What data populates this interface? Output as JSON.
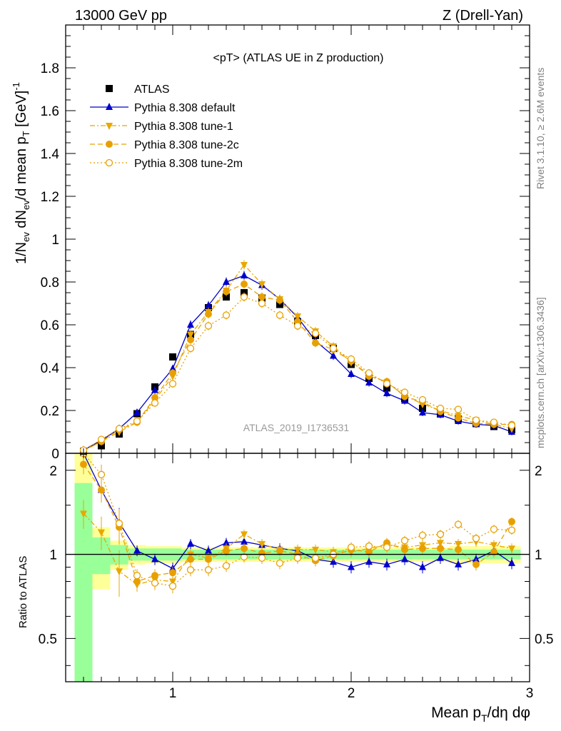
{
  "header": {
    "left": "13000 GeV pp",
    "right": "Z (Drell-Yan)"
  },
  "side_text": {
    "rivet": "Rivet 3.1.10, ≥ 2.6M events",
    "site": "mcplots.cern.ch [arXiv:1306.3436]"
  },
  "watermark": "ATLAS_2019_I1736531",
  "legend_title": "<pT> (ATLAS UE in Z production)",
  "chart_data": [
    {
      "type": "scatter",
      "panel": "main",
      "ylabel": "1/N_ev dN_ev/d mean p_T [GeV]^-1",
      "xlim": [
        0.4,
        3.0
      ],
      "ylim": [
        0,
        2.0
      ],
      "yticks": [
        0,
        0.2,
        0.4,
        0.6,
        0.8,
        1,
        1.2,
        1.4,
        1.6,
        1.8
      ],
      "ytick_labels": [
        "0",
        "0.2",
        "0.4",
        "0.6",
        "0.8",
        "1",
        "1.2",
        "1.4",
        "1.6",
        "1.8"
      ],
      "x": [
        0.5,
        0.6,
        0.7,
        0.8,
        0.9,
        1.0,
        1.1,
        1.2,
        1.3,
        1.4,
        1.5,
        1.6,
        1.7,
        1.8,
        1.9,
        2.0,
        2.1,
        2.2,
        2.3,
        2.4,
        2.5,
        2.6,
        2.7,
        2.8,
        2.9
      ],
      "series": [
        {
          "name": "ATLAS",
          "color": "#000000",
          "marker": "square",
          "values": [
            0.01,
            0.035,
            0.09,
            0.185,
            0.31,
            0.45,
            0.555,
            0.68,
            0.73,
            0.75,
            0.725,
            0.695,
            0.615,
            0.55,
            0.49,
            0.415,
            0.35,
            0.305,
            0.255,
            0.21,
            0.185,
            0.16,
            0.14,
            0.125,
            0.11
          ]
        },
        {
          "name": "Pythia 8.308 default",
          "color": "#0000cc",
          "marker": "triangle-up",
          "line": "solid",
          "values": [
            0.015,
            0.06,
            0.115,
            0.19,
            0.295,
            0.395,
            0.6,
            0.69,
            0.8,
            0.83,
            0.785,
            0.72,
            0.635,
            0.525,
            0.455,
            0.37,
            0.33,
            0.28,
            0.245,
            0.19,
            0.18,
            0.15,
            0.135,
            0.13,
            0.1
          ]
        },
        {
          "name": "Pythia 8.308 tune-1",
          "color": "#e8a800",
          "marker": "triangle-down",
          "line": "dashdot",
          "values": [
            0.012,
            0.055,
            0.1,
            0.145,
            0.25,
            0.36,
            0.555,
            0.66,
            0.76,
            0.88,
            0.79,
            0.72,
            0.64,
            0.57,
            0.5,
            0.425,
            0.37,
            0.33,
            0.27,
            0.23,
            0.2,
            0.175,
            0.155,
            0.135,
            0.115
          ]
        },
        {
          "name": "Pythia 8.308 tune-2c",
          "color": "#e8a000",
          "marker": "circle-filled",
          "line": "dashed",
          "values": [
            0.012,
            0.055,
            0.11,
            0.145,
            0.26,
            0.375,
            0.53,
            0.65,
            0.755,
            0.79,
            0.73,
            0.715,
            0.615,
            0.515,
            0.485,
            0.43,
            0.36,
            0.335,
            0.265,
            0.24,
            0.195,
            0.165,
            0.14,
            0.135,
            0.135
          ]
        },
        {
          "name": "Pythia 8.308 tune-2m",
          "color": "#e8a000",
          "marker": "circle-open",
          "line": "dotted",
          "values": [
            0.015,
            0.065,
            0.115,
            0.15,
            0.235,
            0.325,
            0.49,
            0.595,
            0.645,
            0.73,
            0.7,
            0.645,
            0.595,
            0.56,
            0.49,
            0.44,
            0.375,
            0.325,
            0.285,
            0.25,
            0.21,
            0.205,
            0.155,
            0.145,
            0.13
          ]
        }
      ]
    },
    {
      "type": "scatter",
      "panel": "ratio",
      "ylabel": "Ratio to ATLAS",
      "xlabel": "Mean p_T/dη dφ",
      "xlim": [
        0.4,
        3.0
      ],
      "ylim": [
        0.35,
        2.3
      ],
      "yticks": [
        0.5,
        1,
        2
      ],
      "ytick_labels": [
        "0.5",
        "1",
        "2"
      ],
      "xticks": [
        1,
        2,
        3
      ],
      "xtick_labels": [
        "1",
        "2",
        "3"
      ],
      "x": [
        0.5,
        0.6,
        0.7,
        0.8,
        0.9,
        1.0,
        1.1,
        1.2,
        1.3,
        1.4,
        1.5,
        1.6,
        1.7,
        1.8,
        1.9,
        2.0,
        2.1,
        2.2,
        2.3,
        2.4,
        2.5,
        2.6,
        2.7,
        2.8,
        2.9
      ],
      "band_green": [
        0.8,
        0.15,
        0.08,
        0.05,
        0.05,
        0.05,
        0.04,
        0.04,
        0.04,
        0.04,
        0.04,
        0.04,
        0.04,
        0.04,
        0.04,
        0.04,
        0.04,
        0.04,
        0.04,
        0.04,
        0.04,
        0.04,
        0.04,
        0.04,
        0.04
      ],
      "band_yellow": [
        1.5,
        0.25,
        0.12,
        0.08,
        0.07,
        0.07,
        0.06,
        0.06,
        0.06,
        0.06,
        0.06,
        0.06,
        0.06,
        0.06,
        0.06,
        0.06,
        0.06,
        0.06,
        0.06,
        0.06,
        0.06,
        0.07,
        0.07,
        0.07,
        0.07
      ],
      "series": [
        {
          "name": "Pythia 8.308 default",
          "color": "#0000cc",
          "marker": "triangle-up",
          "line": "solid",
          "values": [
            2.3,
            1.7,
            1.3,
            1.03,
            0.96,
            0.89,
            1.09,
            1.03,
            1.1,
            1.11,
            1.08,
            1.05,
            1.03,
            0.96,
            0.94,
            0.9,
            0.94,
            0.92,
            0.96,
            0.9,
            0.97,
            0.92,
            0.96,
            1.03,
            0.93
          ]
        },
        {
          "name": "Pythia 8.308 tune-1",
          "color": "#e8a800",
          "marker": "triangle-down",
          "line": "dashdot",
          "values": [
            1.4,
            1.2,
            0.87,
            0.78,
            0.81,
            0.8,
            1.0,
            0.97,
            1.05,
            1.18,
            1.09,
            1.04,
            1.04,
            1.04,
            1.02,
            1.02,
            1.05,
            1.08,
            1.06,
            1.08,
            1.1,
            1.09,
            1.11,
            1.08,
            1.05
          ]
        },
        {
          "name": "Pythia 8.308 tune-2c",
          "color": "#e8a000",
          "marker": "circle-filled",
          "line": "dashed",
          "values": [
            2.1,
            1.7,
            1.25,
            0.8,
            0.84,
            0.86,
            0.96,
            0.96,
            1.03,
            1.05,
            1.01,
            1.03,
            1.0,
            0.95,
            0.99,
            1.04,
            1.02,
            1.1,
            1.04,
            1.05,
            1.05,
            1.04,
            0.92,
            1.02,
            1.31
          ]
        },
        {
          "name": "Pythia 8.308 tune-2m",
          "color": "#e8a000",
          "marker": "circle-open",
          "line": "dotted",
          "values": [
            2.3,
            1.93,
            1.29,
            0.84,
            0.79,
            0.77,
            0.88,
            0.88,
            0.91,
            0.98,
            0.97,
            0.93,
            0.97,
            0.97,
            1.0,
            1.06,
            1.07,
            1.06,
            1.12,
            1.17,
            1.18,
            1.28,
            1.14,
            1.23,
            1.22
          ]
        }
      ]
    }
  ]
}
